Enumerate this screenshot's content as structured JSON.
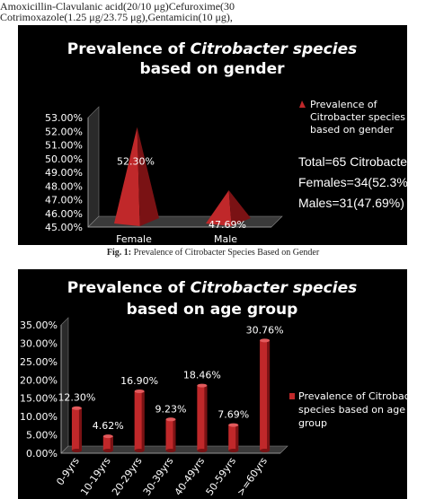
{
  "header": {
    "line1": "Amoxicillin-Clavulanic acid(20/10 μg)Cefuroxime(30",
    "line2": "Cotrimoxazole(1.25 μg/23.75 μg),Gentamicin(10 μg),"
  },
  "caption": {
    "label": "Fig. 1:",
    "text": " Prevalence of Citrobacter Species Based on Gender"
  },
  "colors": {
    "background": "#000000",
    "bar": "#c0282a",
    "bar_dark": "#7a1214",
    "text": "#ffffff"
  },
  "chart_data": [
    {
      "type": "bar",
      "shape": "pyramid-3d",
      "title": "Prevalence of Citrobacter species based on gender",
      "title_line1_a": "Prevalence of ",
      "title_line1_b": "Citrobacter species",
      "title_line2": "based on gender",
      "categories": [
        "Female",
        "Male"
      ],
      "series": [
        {
          "name": "Prevalence of Citrobacter species based on gender",
          "values": [
            52.3,
            47.69
          ],
          "labels": [
            "52.30%",
            "47.69%"
          ]
        }
      ],
      "legend_lines": [
        "Prevalence of",
        "Citrobacter species",
        "based on gender"
      ],
      "legend_position": "right",
      "annotations": [
        "Total=65 Citrobacter species",
        "Females=34(52.3%)",
        "Males=31(47.69%)"
      ],
      "ylim": [
        45,
        53
      ],
      "yticks": [
        "45.00%",
        "46.00%",
        "47.00%",
        "48.00%",
        "49.00%",
        "50.00%",
        "51.00%",
        "52.00%",
        "53.00%"
      ],
      "grid": false
    },
    {
      "type": "bar",
      "shape": "cylinder-3d",
      "title": "Prevalence of Citrobacter species based on age group",
      "title_line1_a": "Prevalence of ",
      "title_line1_b": "Citrobacter species",
      "title_line2": "based on age group",
      "categories": [
        "0-9yrs",
        "10-19yrs",
        "20-29yrs",
        "30-39yrs",
        "40-49yrs",
        "50-59yrs",
        ">=60yrs"
      ],
      "series": [
        {
          "name": "Prevalence of Citrobacter species based on age group",
          "values": [
            12.3,
            4.62,
            16.9,
            9.23,
            18.46,
            7.69,
            30.76
          ],
          "labels": [
            "12.30%",
            "4.62%",
            "16.90%",
            "9.23%",
            "18.46%",
            "7.69%",
            "30.76%"
          ]
        }
      ],
      "legend_lines": [
        "Prevalence of Citrobacter",
        "species based on age",
        "group"
      ],
      "legend_position": "right",
      "ylim": [
        0,
        35
      ],
      "yticks": [
        "0.00%",
        "5.00%",
        "10.00%",
        "15.00%",
        "20.00%",
        "25.00%",
        "30.00%",
        "35.00%"
      ],
      "grid": false
    }
  ]
}
